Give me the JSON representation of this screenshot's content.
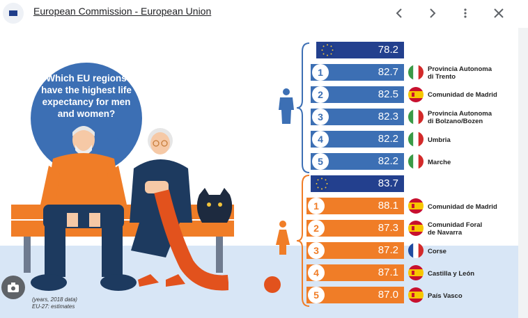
{
  "window": {
    "title": "European Commission - European Union"
  },
  "icons": {
    "back": "chevron-left-icon",
    "forward": "chevron-right-icon",
    "more": "more-vert-icon",
    "close": "close-icon",
    "lens": "camera-icon"
  },
  "infographic": {
    "question": "Which EU regions have the highest life expectancy for men and women?",
    "note_line1": "(years, 2018 data)",
    "note_line2": "EU-27: estimates",
    "men": {
      "eu_value": "78.2",
      "rows": [
        {
          "rank": "1",
          "value": "82.7",
          "region_line1": "Provincia Autonoma",
          "region_line2": "di Trento",
          "flag": "italy"
        },
        {
          "rank": "2",
          "value": "82.5",
          "region_line1": "Comunidad de Madrid",
          "region_line2": "",
          "flag": "spain"
        },
        {
          "rank": "3",
          "value": "82.3",
          "region_line1": "Provincia Autonoma",
          "region_line2": "di Bolzano/Bozen",
          "flag": "italy"
        },
        {
          "rank": "4",
          "value": "82.2",
          "region_line1": "Umbria",
          "region_line2": "",
          "flag": "italy"
        },
        {
          "rank": "5",
          "value": "82.2",
          "region_line1": "Marche",
          "region_line2": "",
          "flag": "italy"
        }
      ]
    },
    "women": {
      "eu_value": "83.7",
      "rows": [
        {
          "rank": "1",
          "value": "88.1",
          "region_line1": "Comunidad de Madrid",
          "region_line2": "",
          "flag": "spain"
        },
        {
          "rank": "2",
          "value": "87.3",
          "region_line1": "Comunidad Foral",
          "region_line2": "de Navarra",
          "flag": "spain"
        },
        {
          "rank": "3",
          "value": "87.2",
          "region_line1": "Corse",
          "region_line2": "",
          "flag": "france"
        },
        {
          "rank": "4",
          "value": "87.1",
          "region_line1": "Castilla y León",
          "region_line2": "",
          "flag": "spain"
        },
        {
          "rank": "5",
          "value": "87.0",
          "region_line1": "País Vasco",
          "region_line2": "",
          "flag": "spain"
        }
      ]
    }
  },
  "colors": {
    "men_bar": "#3c6fb4",
    "men_eu_bar": "#23408e",
    "women_bar": "#f07d27",
    "women_eu_bar": "#23408e",
    "floor": "#d8e6f6"
  }
}
